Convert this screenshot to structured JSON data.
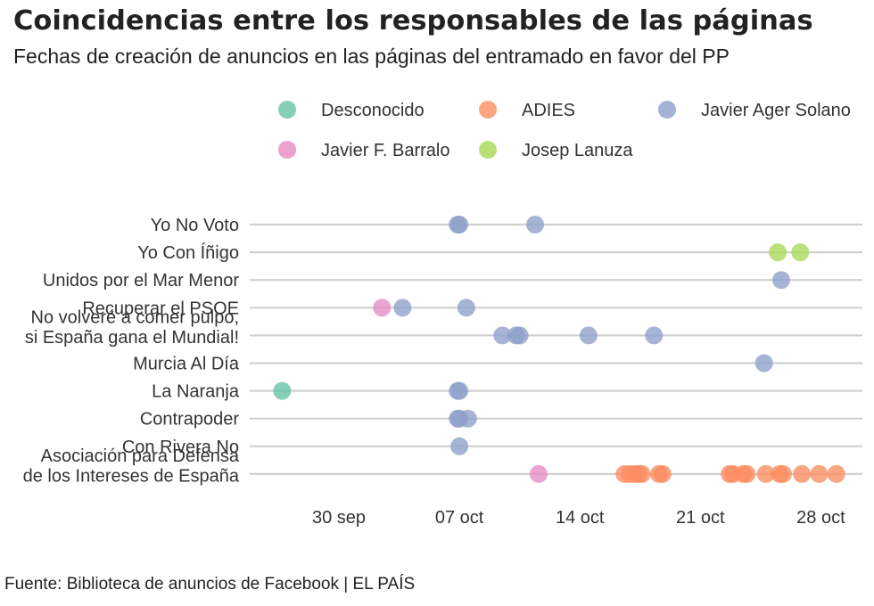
{
  "chart_data": {
    "type": "scatter",
    "title": "Coincidencias entre los responsables de las páginas",
    "subtitle": "Fechas de creación de anuncios en las páginas del entramado en favor del PP",
    "source": "Fuente: Biblioteca de anuncios de Facebook | EL PAÍS",
    "xlabel": "",
    "ylabel": "",
    "x_unit": "days (0 = 30 sep)",
    "xlim": [
      -3.6,
      30.8
    ],
    "x_ticks": [
      {
        "value": 0,
        "label": "30 sep"
      },
      {
        "value": 7,
        "label": "07 oct"
      },
      {
        "value": 14,
        "label": "14 oct"
      },
      {
        "value": 21,
        "label": "21 oct"
      },
      {
        "value": 28,
        "label": "28 oct"
      }
    ],
    "legend": [
      {
        "name": "Desconocido",
        "color": "#66c2a5"
      },
      {
        "name": "ADIES",
        "color": "#fc8d62"
      },
      {
        "name": "Javier Ager Solano",
        "color": "#8da0cb"
      },
      {
        "name": "Javier F. Barralo",
        "color": "#e78ac3"
      },
      {
        "name": "Josep Lanuza",
        "color": "#a6d854"
      }
    ],
    "categories": [
      {
        "label": [
          "Yo No Voto"
        ]
      },
      {
        "label": [
          "Yo Con Íñigo"
        ]
      },
      {
        "label": [
          "Unidos por el Mar Menor"
        ]
      },
      {
        "label": [
          "Recuperar el PSOE"
        ]
      },
      {
        "label": [
          "No volveré a comer pulpo,",
          "si España gana el Mundial!"
        ]
      },
      {
        "label": [
          "Murcia Al Día"
        ]
      },
      {
        "label": [
          "La Naranja"
        ]
      },
      {
        "label": [
          "Contrapoder"
        ]
      },
      {
        "label": [
          "Con Rivera No"
        ]
      },
      {
        "label": [
          "Asociación para Defensa",
          "de los Intereses de España"
        ]
      }
    ],
    "series": [
      {
        "name": "Desconocido",
        "points": [
          {
            "row": 6,
            "x": -3.3
          }
        ]
      },
      {
        "name": "ADIES",
        "points": [
          {
            "row": 9,
            "x": 16.6
          },
          {
            "row": 9,
            "x": 16.9
          },
          {
            "row": 9,
            "x": 17.2
          },
          {
            "row": 9,
            "x": 17.4
          },
          {
            "row": 9,
            "x": 17.6
          },
          {
            "row": 9,
            "x": 18.6
          },
          {
            "row": 9,
            "x": 18.8
          },
          {
            "row": 9,
            "x": 22.7
          },
          {
            "row": 9,
            "x": 22.9
          },
          {
            "row": 9,
            "x": 23.5
          },
          {
            "row": 9,
            "x": 23.7
          },
          {
            "row": 9,
            "x": 24.8
          },
          {
            "row": 9,
            "x": 25.6
          },
          {
            "row": 9,
            "x": 25.8
          },
          {
            "row": 9,
            "x": 26.9
          },
          {
            "row": 9,
            "x": 27.9
          },
          {
            "row": 9,
            "x": 28.9
          }
        ]
      },
      {
        "name": "Javier Ager Solano",
        "points": [
          {
            "row": 0,
            "x": 6.9
          },
          {
            "row": 0,
            "x": 7.0
          },
          {
            "row": 0,
            "x": 11.4
          },
          {
            "row": 2,
            "x": 25.7
          },
          {
            "row": 3,
            "x": 3.7
          },
          {
            "row": 3,
            "x": 7.4
          },
          {
            "row": 4,
            "x": 9.5
          },
          {
            "row": 4,
            "x": 10.3
          },
          {
            "row": 4,
            "x": 10.5
          },
          {
            "row": 4,
            "x": 14.5
          },
          {
            "row": 4,
            "x": 18.3
          },
          {
            "row": 5,
            "x": 24.7
          },
          {
            "row": 6,
            "x": 6.9
          },
          {
            "row": 6,
            "x": 7.0
          },
          {
            "row": 7,
            "x": 6.9
          },
          {
            "row": 7,
            "x": 7.0
          },
          {
            "row": 7,
            "x": 7.5
          },
          {
            "row": 8,
            "x": 7.0
          }
        ]
      },
      {
        "name": "Javier F. Barralo",
        "points": [
          {
            "row": 3,
            "x": 2.5
          },
          {
            "row": 9,
            "x": 11.6
          }
        ]
      },
      {
        "name": "Josep Lanuza",
        "points": [
          {
            "row": 1,
            "x": 25.5
          },
          {
            "row": 1,
            "x": 26.8
          }
        ]
      }
    ]
  }
}
